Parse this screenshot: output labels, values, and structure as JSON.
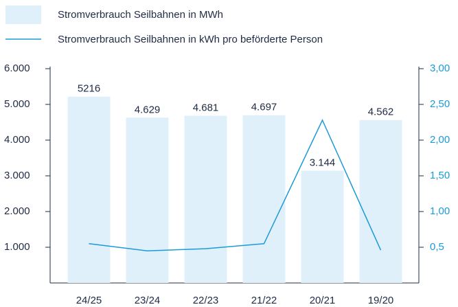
{
  "chart_data": {
    "type": "bar",
    "categories": [
      "24/25",
      "23/24",
      "22/23",
      "21/22",
      "20/21",
      "19/20"
    ],
    "series": [
      {
        "name": "Stromverbrauch Seilbahnen in MWh",
        "color": "#dff0fb",
        "type": "bar",
        "values": [
          5216,
          4629,
          4681,
          4697,
          3144,
          4562
        ],
        "value_labels": [
          "5216",
          "4.629",
          "4.681",
          "4.697",
          "3.144",
          "4.562"
        ]
      },
      {
        "name": "Stromverbrauch Seilbahnen in kWh pro beförderte Person",
        "color": "#1a9ad6",
        "type": "line",
        "axis": "y2",
        "values": [
          0.55,
          0.45,
          0.48,
          0.55,
          2.28,
          0.46
        ]
      }
    ],
    "ylim": [
      0,
      6000
    ],
    "yticks": [
      {
        "value": 1000,
        "label": "1.000"
      },
      {
        "value": 2000,
        "label": "2.000"
      },
      {
        "value": 3000,
        "label": "3.000"
      },
      {
        "value": 4000,
        "label": "4.000"
      },
      {
        "value": 5000,
        "label": "5.000"
      },
      {
        "value": 6000,
        "label": "6.000"
      }
    ],
    "y2lim": [
      0,
      3
    ],
    "y2ticks": [
      {
        "value": 0.5,
        "label": "0,5"
      },
      {
        "value": 1,
        "label": "1,00"
      },
      {
        "value": 1.5,
        "label": "1,50"
      },
      {
        "value": 2,
        "label": "2,00"
      },
      {
        "value": 2.5,
        "label": "2,50"
      },
      {
        "value": 3,
        "label": "3,00"
      }
    ]
  }
}
